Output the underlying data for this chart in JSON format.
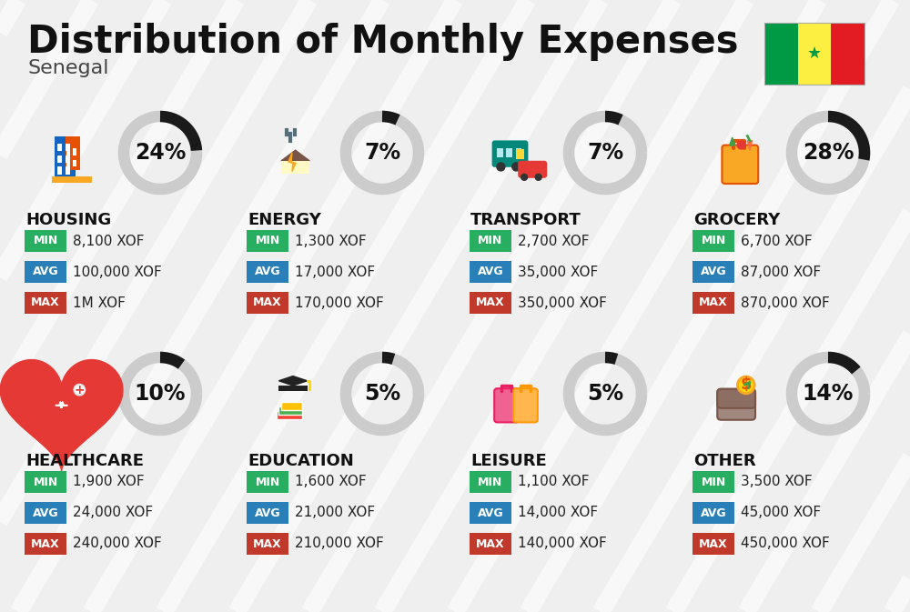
{
  "title": "Distribution of Monthly Expenses",
  "subtitle": "Senegal",
  "bg_color": "#efefef",
  "categories": [
    {
      "name": "HOUSING",
      "pct": 24,
      "min": "8,100 XOF",
      "avg": "100,000 XOF",
      "max": "1M XOF"
    },
    {
      "name": "ENERGY",
      "pct": 7,
      "min": "1,300 XOF",
      "avg": "17,000 XOF",
      "max": "170,000 XOF"
    },
    {
      "name": "TRANSPORT",
      "pct": 7,
      "min": "2,700 XOF",
      "avg": "35,000 XOF",
      "max": "350,000 XOF"
    },
    {
      "name": "GROCERY",
      "pct": 28,
      "min": "6,700 XOF",
      "avg": "87,000 XOF",
      "max": "870,000 XOF"
    },
    {
      "name": "HEALTHCARE",
      "pct": 10,
      "min": "1,900 XOF",
      "avg": "24,000 XOF",
      "max": "240,000 XOF"
    },
    {
      "name": "EDUCATION",
      "pct": 5,
      "min": "1,600 XOF",
      "avg": "21,000 XOF",
      "max": "210,000 XOF"
    },
    {
      "name": "LEISURE",
      "pct": 5,
      "min": "1,100 XOF",
      "avg": "14,000 XOF",
      "max": "140,000 XOF"
    },
    {
      "name": "OTHER",
      "pct": 14,
      "min": "3,500 XOF",
      "avg": "45,000 XOF",
      "max": "450,000 XOF"
    }
  ],
  "color_min": "#27ae60",
  "color_avg": "#2980b9",
  "color_max": "#c0392b",
  "flag_green": "#009a44",
  "flag_yellow": "#fdef42",
  "flag_red": "#e31b23",
  "arc_filled": "#1a1a1a",
  "arc_empty": "#cccccc",
  "stripe_color": "#ffffff",
  "title_color": "#111111",
  "sub_color": "#444444",
  "cat_name_color": "#111111",
  "val_color": "#222222"
}
